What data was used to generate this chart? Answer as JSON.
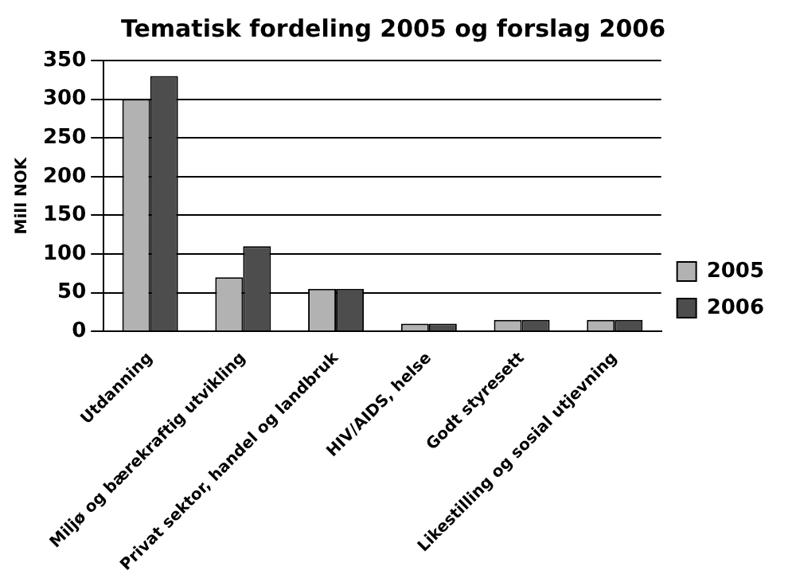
{
  "chart_data": {
    "type": "bar",
    "title": "Tematisk fordeling 2005 og forslag 2006",
    "ylabel": "Mill NOK",
    "categories": [
      "Utdanning",
      "Miljø og bærekraftig utvikling",
      "Privat sektor, handel og landbruk",
      "HIV/AIDS, helse",
      "Godt styresett",
      "Likestilling og sosial utjevning"
    ],
    "series": [
      {
        "name": "2005",
        "color": "#b2b2b2",
        "values": [
          300,
          70,
          55,
          10,
          15,
          15
        ]
      },
      {
        "name": "2006",
        "color": "#4d4d4d",
        "values": [
          330,
          110,
          55,
          10,
          15,
          15
        ]
      }
    ],
    "ylim": [
      0,
      350
    ],
    "yticks": [
      0,
      50,
      100,
      150,
      200,
      250,
      300,
      350
    ],
    "grid": "y",
    "legend": "right"
  }
}
